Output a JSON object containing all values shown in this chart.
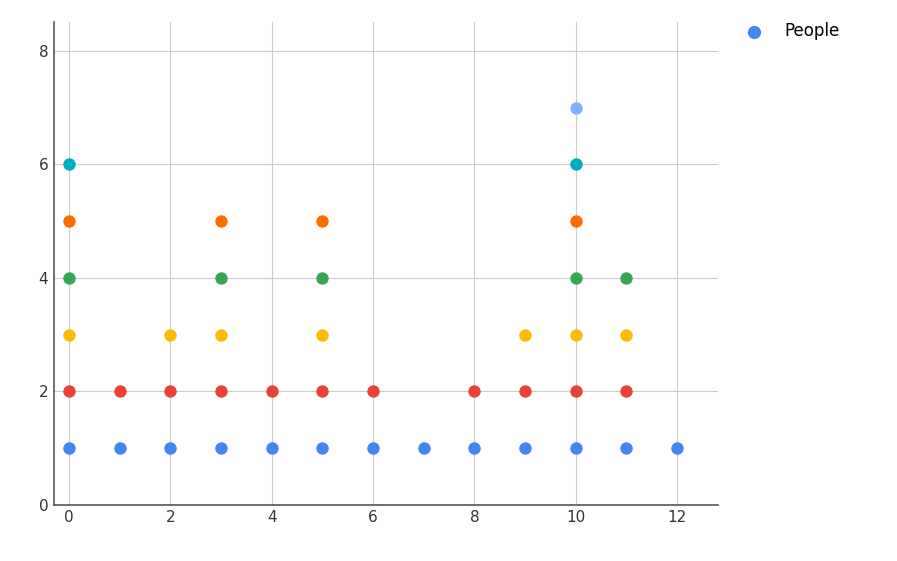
{
  "series": [
    {
      "color": "#4285F4",
      "label": "People",
      "points": [
        [
          0,
          1
        ],
        [
          1,
          1
        ],
        [
          2,
          1
        ],
        [
          3,
          1
        ],
        [
          4,
          1
        ],
        [
          5,
          1
        ],
        [
          6,
          1
        ],
        [
          7,
          1
        ],
        [
          8,
          1
        ],
        [
          9,
          1
        ],
        [
          10,
          1
        ],
        [
          11,
          1
        ],
        [
          12,
          1
        ]
      ]
    },
    {
      "color": "#EA4335",
      "label": "",
      "points": [
        [
          0,
          2
        ],
        [
          1,
          2
        ],
        [
          2,
          2
        ],
        [
          3,
          2
        ],
        [
          4,
          2
        ],
        [
          5,
          2
        ],
        [
          6,
          2
        ],
        [
          8,
          2
        ],
        [
          9,
          2
        ],
        [
          10,
          2
        ],
        [
          11,
          2
        ]
      ]
    },
    {
      "color": "#FBBC04",
      "label": "",
      "points": [
        [
          0,
          3
        ],
        [
          2,
          3
        ],
        [
          3,
          3
        ],
        [
          5,
          3
        ],
        [
          9,
          3
        ],
        [
          10,
          3
        ],
        [
          11,
          3
        ]
      ]
    },
    {
      "color": "#34A853",
      "label": "",
      "points": [
        [
          0,
          4
        ],
        [
          3,
          4
        ],
        [
          5,
          4
        ],
        [
          10,
          4
        ],
        [
          11,
          4
        ]
      ]
    },
    {
      "color": "#FF6D00",
      "label": "",
      "points": [
        [
          0,
          5
        ],
        [
          3,
          5
        ],
        [
          5,
          5
        ],
        [
          10,
          5
        ]
      ]
    },
    {
      "color": "#00ACC1",
      "label": "",
      "points": [
        [
          0,
          6
        ],
        [
          10,
          6
        ]
      ]
    },
    {
      "color": "#82B1FF",
      "label": "",
      "points": [
        [
          10,
          7
        ]
      ]
    }
  ],
  "xlim": [
    -0.3,
    12.8
  ],
  "ylim": [
    0,
    8.5
  ],
  "xticks": [
    0,
    2,
    4,
    6,
    8,
    10,
    12
  ],
  "yticks": [
    0,
    2,
    4,
    6,
    8
  ],
  "dot_size": 80,
  "background_color": "#ffffff",
  "grid_color": "#cccccc",
  "figwidth": 8.97,
  "figheight": 5.61,
  "dpi": 100
}
